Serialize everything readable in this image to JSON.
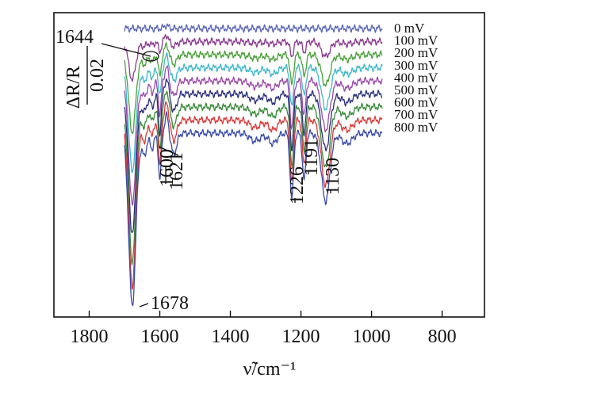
{
  "chart_data": {
    "type": "line",
    "title": "",
    "xlabel": "ν̃/cm⁻¹",
    "ylabel": "",
    "x_reversed": true,
    "xlim": [
      1900,
      680
    ],
    "xticks": [
      1800,
      1600,
      1400,
      1200,
      1000,
      800
    ],
    "x_range_data": [
      1700,
      970
    ],
    "grid": false,
    "legend_position": "right-inline",
    "scale_bar": {
      "label_top": "ΔR/R",
      "label_bottom": "0.02",
      "value": 0.02
    },
    "series": [
      {
        "name": "0 mV",
        "color": "#5a66b8",
        "offset": 0.0,
        "amplitude": 0.0
      },
      {
        "name": "100 mV",
        "color": "#8a3a8e",
        "offset": 0.025,
        "amplitude": 0.22
      },
      {
        "name": "200 mV",
        "color": "#4aa03a",
        "offset": 0.05,
        "amplitude": 0.45
      },
      {
        "name": "300 mV",
        "color": "#3fb8c8",
        "offset": 0.075,
        "amplitude": 0.6
      },
      {
        "name": "400 mV",
        "color": "#9a4aa8",
        "offset": 0.1,
        "amplitude": 0.72
      },
      {
        "name": "500 mV",
        "color": "#2a2f7a",
        "offset": 0.125,
        "amplitude": 0.82
      },
      {
        "name": "600 mV",
        "color": "#3a8a3a",
        "offset": 0.15,
        "amplitude": 0.9
      },
      {
        "name": "700 mV",
        "color": "#d83a3a",
        "offset": 0.175,
        "amplitude": 0.96
      },
      {
        "name": "800 mV",
        "color": "#3a4aa8",
        "offset": 0.2,
        "amplitude": 1.0
      }
    ],
    "peaks": [
      {
        "x": 1678,
        "depth": 0.33,
        "width": 10
      },
      {
        "x": 1644,
        "depth": 0.04,
        "width": 8
      },
      {
        "x": 1621,
        "depth": 0.03,
        "width": 5
      },
      {
        "x": 1600,
        "depth": 0.09,
        "width": 4
      },
      {
        "x": 1580,
        "depth": -0.03,
        "width": 5
      },
      {
        "x": 1560,
        "depth": 0.04,
        "width": 8
      },
      {
        "x": 1226,
        "depth": 0.125,
        "width": 5
      },
      {
        "x": 1191,
        "depth": 0.09,
        "width": 5
      },
      {
        "x": 1130,
        "depth": 0.13,
        "width": 12
      },
      {
        "x": 1330,
        "depth": 0.015,
        "width": 15
      },
      {
        "x": 1280,
        "depth": 0.02,
        "width": 12
      },
      {
        "x": 1070,
        "depth": 0.02,
        "width": 15
      }
    ],
    "annotations": [
      {
        "label": "1678",
        "x": 1678
      },
      {
        "label": "1644",
        "x": 1644
      },
      {
        "label": "1621",
        "x": 1621
      },
      {
        "label": "1600",
        "x": 1600
      },
      {
        "label": "1226",
        "x": 1226
      },
      {
        "label": "1191",
        "x": 1191
      },
      {
        "label": "1130",
        "x": 1130
      }
    ]
  }
}
